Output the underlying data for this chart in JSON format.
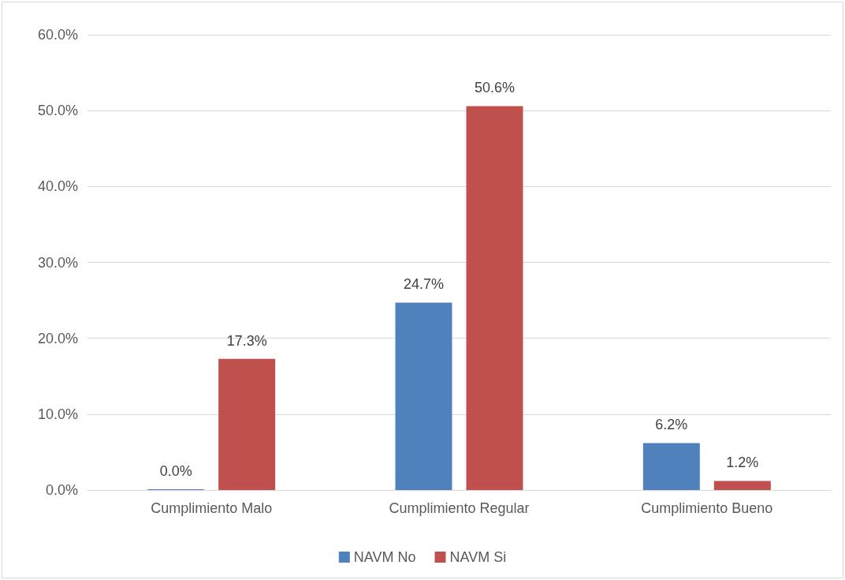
{
  "chart_data": {
    "type": "bar",
    "categories": [
      "Cumplimiento Malo",
      "Cumplimiento Regular",
      "Cumplimiento Bueno"
    ],
    "series": [
      {
        "name": "NAVM No",
        "color": "#4f81bd",
        "values": [
          0.0,
          24.7,
          6.2
        ],
        "value_labels": [
          "0.0%",
          "24.7%",
          "6.2%"
        ]
      },
      {
        "name": "NAVM Si",
        "color": "#c0504d",
        "values": [
          17.3,
          50.6,
          1.2
        ],
        "value_labels": [
          "17.3%",
          "50.6%",
          "1.2%"
        ]
      }
    ],
    "ylim": [
      0,
      60
    ],
    "yticks": [
      {
        "value": 0,
        "label": "0.0%"
      },
      {
        "value": 10,
        "label": "10.0%"
      },
      {
        "value": 20,
        "label": "20.0%"
      },
      {
        "value": 30,
        "label": "30.0%"
      },
      {
        "value": 40,
        "label": "40.0%"
      },
      {
        "value": 50,
        "label": "50.0%"
      },
      {
        "value": 60,
        "label": "60.0%"
      }
    ],
    "grid": "y",
    "legend": "bottom"
  }
}
